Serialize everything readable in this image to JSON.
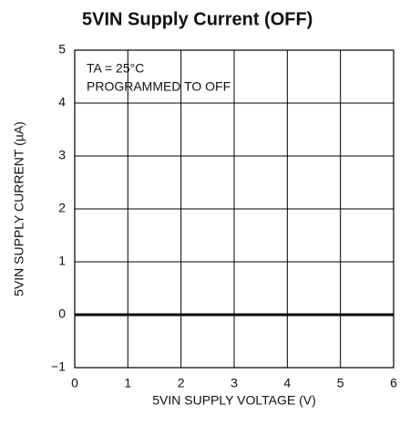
{
  "chart_data": {
    "type": "line",
    "title": "5VIN Supply Current (OFF)",
    "x_label": "5VIN SUPPLY VOLTAGE (V)",
    "y_label": "5VIN SUPPLY CURRENT (µA)",
    "annotations": [
      "TA = 25°C",
      "PROGRAMMED TO OFF"
    ],
    "x": [
      0,
      6
    ],
    "series": [
      {
        "name": "Supply Current",
        "color": "#000000",
        "values": [
          0,
          0
        ]
      }
    ],
    "xlim": [
      0,
      6
    ],
    "xticks": [
      0,
      1,
      2,
      3,
      4,
      5,
      6
    ],
    "ylim": [
      -1,
      5
    ],
    "yticks": [
      {
        "value": -1,
        "label": "−1"
      },
      0,
      1,
      2,
      3,
      4,
      5
    ],
    "grid": true
  }
}
